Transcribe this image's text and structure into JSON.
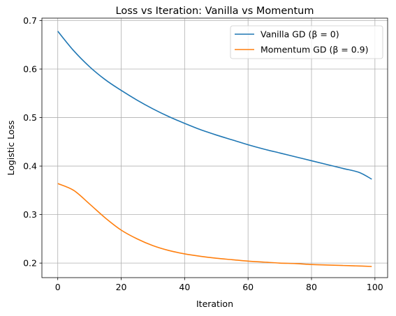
{
  "chart_data": {
    "type": "line",
    "title": "Loss vs Iteration: Vanilla vs Momentum",
    "xlabel": "Iteration",
    "ylabel": "Logistic Loss",
    "xlim": [
      -5,
      104
    ],
    "ylim": [
      0.17,
      0.705
    ],
    "xticks": [
      0,
      20,
      40,
      60,
      80,
      100
    ],
    "yticks": [
      0.2,
      0.3,
      0.4,
      0.5,
      0.6,
      0.7
    ],
    "xtick_labels": [
      "0",
      "20",
      "40",
      "60",
      "80",
      "100"
    ],
    "ytick_labels": [
      "0.2",
      "0.3",
      "0.4",
      "0.5",
      "0.6",
      "0.7"
    ],
    "grid": true,
    "legend_position": "top-right",
    "x": [
      0,
      5,
      10,
      15,
      20,
      25,
      30,
      35,
      40,
      45,
      50,
      55,
      60,
      65,
      70,
      75,
      80,
      85,
      90,
      95,
      99
    ],
    "series": [
      {
        "name": "Vanilla GD (β = 0)",
        "color": "#1f77b4",
        "values": [
          0.678,
          0.638,
          0.605,
          0.578,
          0.556,
          0.536,
          0.518,
          0.502,
          0.488,
          0.475,
          0.464,
          0.454,
          0.444,
          0.435,
          0.427,
          0.419,
          0.411,
          0.403,
          0.395,
          0.387,
          0.373
        ]
      },
      {
        "name": "Momentum GD (β = 0.9)",
        "color": "#ff7f0e",
        "values": [
          0.364,
          0.35,
          0.322,
          0.293,
          0.268,
          0.25,
          0.236,
          0.226,
          0.219,
          0.214,
          0.21,
          0.207,
          0.204,
          0.202,
          0.2,
          0.199,
          0.197,
          0.196,
          0.195,
          0.194,
          0.193
        ]
      }
    ]
  }
}
